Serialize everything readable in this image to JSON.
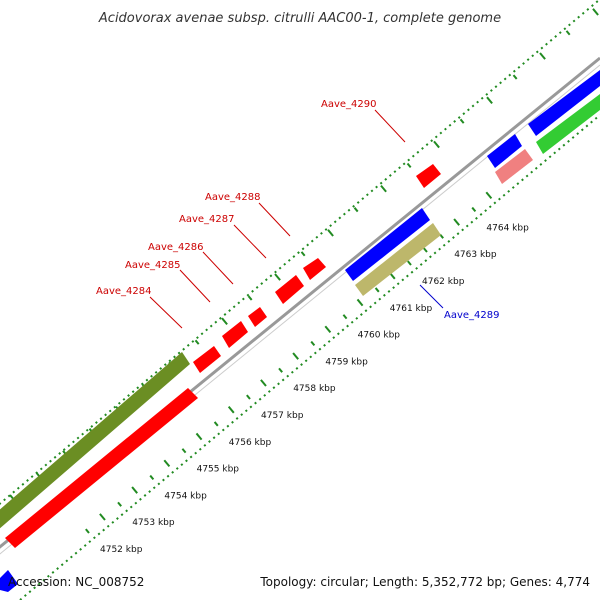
{
  "title": "Acidovorax avenae subsp. citrulli AAC00-1, complete genome",
  "footer": {
    "accession": "Accession: NC_008752",
    "summary": "Topology: circular; Length: 5,352,772 bp; Genes: 4,774"
  },
  "colors": {
    "forward_gene": "#ff0000",
    "reverse_gene": "#0000ff",
    "pseudogene": "#f08080",
    "olive_feature": "#6b8e23",
    "khaki_feature": "#bdb76b",
    "green_feature": "#33cc33",
    "backbone": "#999999",
    "tick_dots": "#228b22",
    "label_red": "#cc0000",
    "label_blue": "#0000cc"
  },
  "ticks": [
    "4752 kbp",
    "4753 kbp",
    "4754 kbp",
    "4755 kbp",
    "4756 kbp",
    "4757 kbp",
    "4758 kbp",
    "4759 kbp",
    "4760 kbp",
    "4761 kbp",
    "4762 kbp",
    "4763 kbp",
    "4764 kbp"
  ],
  "gene_labels": [
    {
      "text": "Aave_4284",
      "strand": "forward"
    },
    {
      "text": "Aave_4285",
      "strand": "forward"
    },
    {
      "text": "Aave_4286",
      "strand": "forward"
    },
    {
      "text": "Aave_4287",
      "strand": "forward"
    },
    {
      "text": "Aave_4288",
      "strand": "forward"
    },
    {
      "text": "Aave_4290",
      "strand": "forward"
    },
    {
      "text": "Aave_4289",
      "strand": "reverse"
    }
  ]
}
